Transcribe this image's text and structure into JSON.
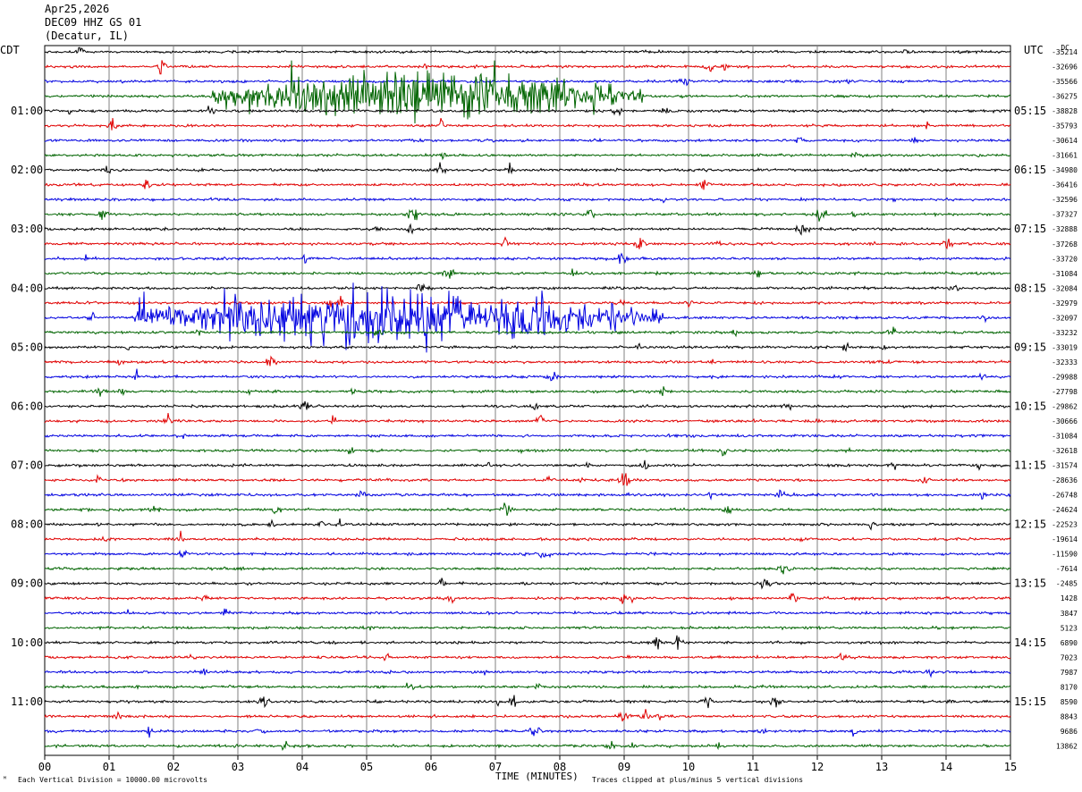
{
  "header": {
    "date": "Apr25,2026",
    "station": "DEC09 HHZ GS 01",
    "location": "(Decatur, IL)"
  },
  "labels": {
    "left_tz": "CDT",
    "right_tz": "UTC",
    "dc": "DC"
  },
  "footer": {
    "scale": "Each Vertical Division = 10000.00 microvolts",
    "xlabel": "TIME (MINUTES)",
    "clip": "Traces clipped at plus/minus 5 vertical divisions"
  },
  "colors": {
    "trace_cycle": [
      "#000000",
      "#e00000",
      "#0000e0",
      "#006400"
    ],
    "grid": "#808080"
  },
  "chart_data": {
    "type": "line",
    "title": "DEC09 HHZ GS 01",
    "xlabel": "TIME (MINUTES)",
    "xlim": [
      0,
      15
    ],
    "x_ticks": [
      "00",
      "01",
      "02",
      "03",
      "04",
      "05",
      "06",
      "07",
      "08",
      "09",
      "10",
      "11",
      "12",
      "13",
      "14",
      "15"
    ],
    "rows": 48,
    "left_time_labels": [
      {
        "row": 4,
        "label": "01:00"
      },
      {
        "row": 8,
        "label": "02:00"
      },
      {
        "row": 12,
        "label": "03:00"
      },
      {
        "row": 16,
        "label": "04:00"
      },
      {
        "row": 20,
        "label": "05:00"
      },
      {
        "row": 24,
        "label": "06:00"
      },
      {
        "row": 28,
        "label": "07:00"
      },
      {
        "row": 32,
        "label": "08:00"
      },
      {
        "row": 36,
        "label": "09:00"
      },
      {
        "row": 40,
        "label": "10:00"
      },
      {
        "row": 44,
        "label": "11:00"
      }
    ],
    "right_time_labels": [
      {
        "row": 4,
        "label": "05:15"
      },
      {
        "row": 8,
        "label": "06:15"
      },
      {
        "row": 12,
        "label": "07:15"
      },
      {
        "row": 16,
        "label": "08:15"
      },
      {
        "row": 20,
        "label": "09:15"
      },
      {
        "row": 24,
        "label": "10:15"
      },
      {
        "row": 28,
        "label": "11:15"
      },
      {
        "row": 32,
        "label": "12:15"
      },
      {
        "row": 36,
        "label": "13:15"
      },
      {
        "row": 40,
        "label": "14:15"
      },
      {
        "row": 44,
        "label": "15:15"
      }
    ],
    "dc_offsets": [
      "-35214",
      "-32696",
      "-35566",
      "-36275",
      "-38828",
      "-35793",
      "-30614",
      "-31661",
      "-34980",
      "-36416",
      "-32596",
      "-37327",
      "-32888",
      "-37268",
      "-33720",
      "-31084",
      "-32084",
      "-32979",
      "-32097",
      "-33232",
      "-33019",
      "-32333",
      "-29988",
      "-27798",
      "-29862",
      "-30666",
      "-31084",
      "-32618",
      "-31574",
      "-28636",
      "-26748",
      "-24624",
      "-22523",
      "-19614",
      "-11590",
      "-7614",
      "-2485",
      "1428",
      "3847",
      "5123",
      "6890",
      "7023",
      "7987",
      "8170",
      "8590",
      "8843",
      "9686",
      "13862"
    ],
    "events": [
      {
        "row": 3,
        "start_min": 2.6,
        "end_min": 9.3,
        "peak_amp_div": 5,
        "note": "large green burst"
      },
      {
        "row": 18,
        "start_min": 1.4,
        "end_min": 9.6,
        "peak_amp_div": 5,
        "note": "large blue burst"
      }
    ]
  }
}
